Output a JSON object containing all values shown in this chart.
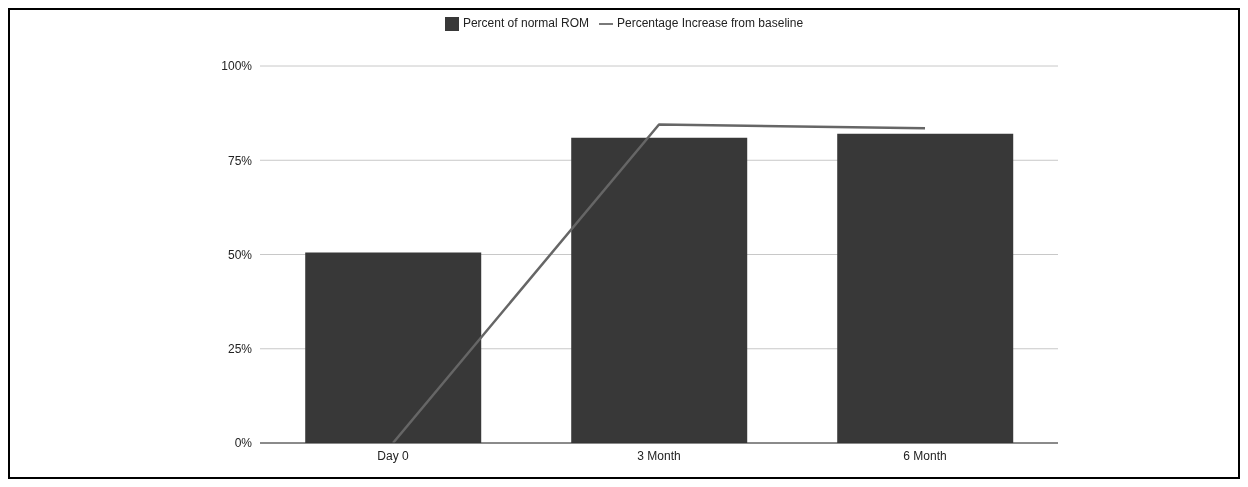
{
  "chart_data": {
    "type": "bar",
    "categories": [
      "Day 0",
      "3 Month",
      "6 Month"
    ],
    "series": [
      {
        "name": "Percent of normal ROM",
        "color": "#383838",
        "values": [
          50.5,
          81,
          82
        ]
      },
      {
        "name": "Percentage Increase from baseline",
        "type": "line",
        "color": "#666666",
        "values": [
          0,
          84.5,
          83.5
        ]
      }
    ],
    "ylim": [
      0,
      100
    ],
    "yticks": [
      {
        "value": 0,
        "label": "0%"
      },
      {
        "value": 25,
        "label": "25%"
      },
      {
        "value": 50,
        "label": "50%"
      },
      {
        "value": 75,
        "label": "75%"
      },
      {
        "value": 100,
        "label": "100%"
      }
    ],
    "grid": "y",
    "legend": "top",
    "marker": "none",
    "line_style": "solid"
  }
}
